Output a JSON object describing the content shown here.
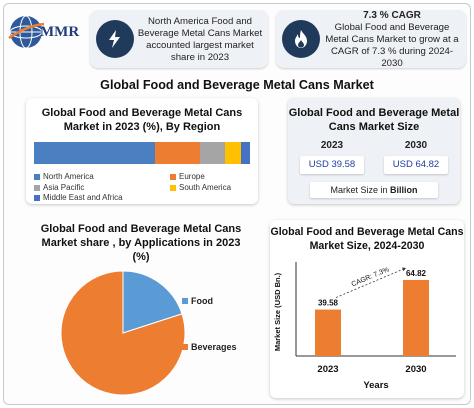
{
  "brand": {
    "logo_text": "MMR"
  },
  "header": {
    "left_card": {
      "icon": "lightning-icon",
      "text": "North America Food and Beverage Metal Cans Market accounted largest market share in 2023"
    },
    "right_card": {
      "icon": "flame-icon",
      "cagr": "7.3 % CAGR",
      "text": "Global Food and Beverage Metal Cans Market to grow at a CAGR of 7.3 % during 2024-2030"
    }
  },
  "main_title": "Global Food and Beverage Metal Cans Market",
  "market_size_panel": {
    "title": "Global Food and Beverage Metal Cans Market Size",
    "years": [
      "2023",
      "2030"
    ],
    "values": [
      "USD 39.58",
      "USD 64.82"
    ],
    "label_prefix": "Market Size in ",
    "label_unit": "Billion"
  },
  "colors": {
    "north_america": "#4a7fc1",
    "europe": "#ed7d31",
    "asia_pacific": "#a5a5a5",
    "south_america": "#ffc000",
    "mea": "#4472c4",
    "food": "#5b9bd5",
    "beverages": "#ed7d31",
    "bar": "#ed7d31",
    "header_icon_bg": "#1f3a5a",
    "value_text": "#1f3d9e"
  },
  "chart_data": [
    {
      "type": "bar",
      "title": "Global Food and Beverage Metal Cans Market in 2023 (%), By Region",
      "orientation": "horizontal-stacked",
      "series": [
        {
          "name": "North America",
          "values": [
            53
          ]
        },
        {
          "name": "Europe",
          "values": [
            20
          ]
        },
        {
          "name": "Asia Pacific",
          "values": [
            11
          ]
        },
        {
          "name": "South America",
          "values": [
            7
          ]
        },
        {
          "name": "Middle East and Africa",
          "values": [
            4
          ]
        }
      ],
      "legend": "bottom"
    },
    {
      "type": "pie",
      "title": "Global  Food and Beverage Metal Cans Market share , by Applications in 2023  (%)",
      "categories": [
        "Food",
        "Beverages"
      ],
      "values": [
        20,
        80
      ],
      "legend": "right"
    },
    {
      "type": "bar",
      "title": "Global  Food and Beverage Metal Cans Market Size, 2024-2030",
      "categories": [
        "2023",
        "2030"
      ],
      "values": [
        39.58,
        64.82
      ],
      "data_labels": [
        "39.58",
        "64.82"
      ],
      "xlabel": "Years",
      "ylabel": "Market Size (USD Bn.)",
      "annotation": "CAGR: 7.3%",
      "ylim": [
        0,
        75
      ]
    }
  ]
}
